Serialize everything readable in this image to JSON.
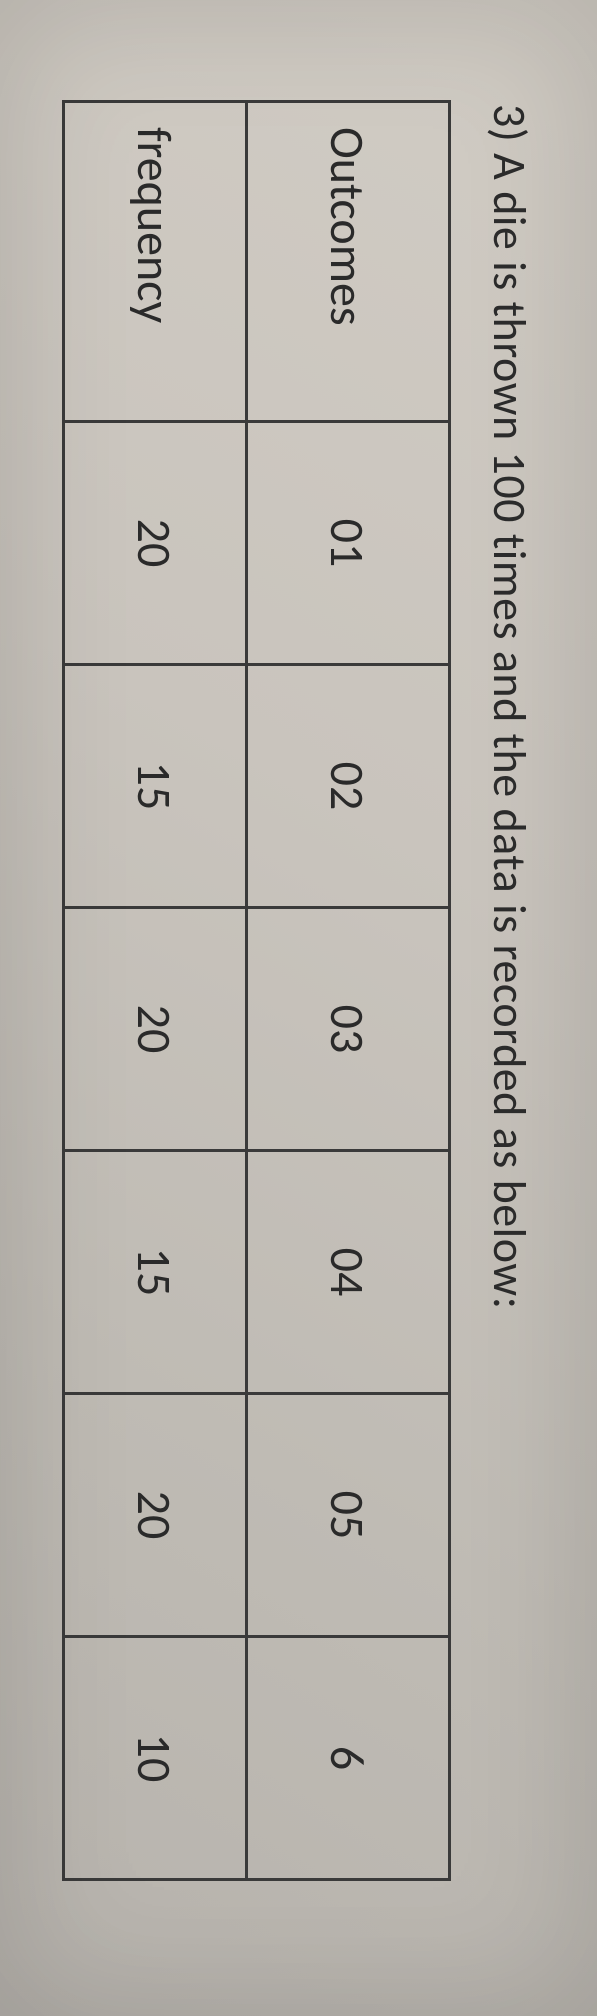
{
  "question": {
    "number": "3)",
    "text": "A die is thrown 100 times and the data is recorded as below:"
  },
  "table": {
    "row_labels": {
      "outcomes": "Outcomes",
      "frequency": "frequency"
    },
    "columns": [
      "01",
      "02",
      "03",
      "04",
      "05",
      "6"
    ],
    "frequencies": [
      "20",
      "15",
      "20",
      "15",
      "20",
      "10"
    ],
    "border_color": "#3a3a3a",
    "text_color": "#2a2a2a",
    "font_size_pt": 36
  },
  "paper": {
    "background_gradient": [
      "#d1ccc4",
      "#c9c4bd",
      "#bfbbb4",
      "#b7b3ad"
    ]
  }
}
